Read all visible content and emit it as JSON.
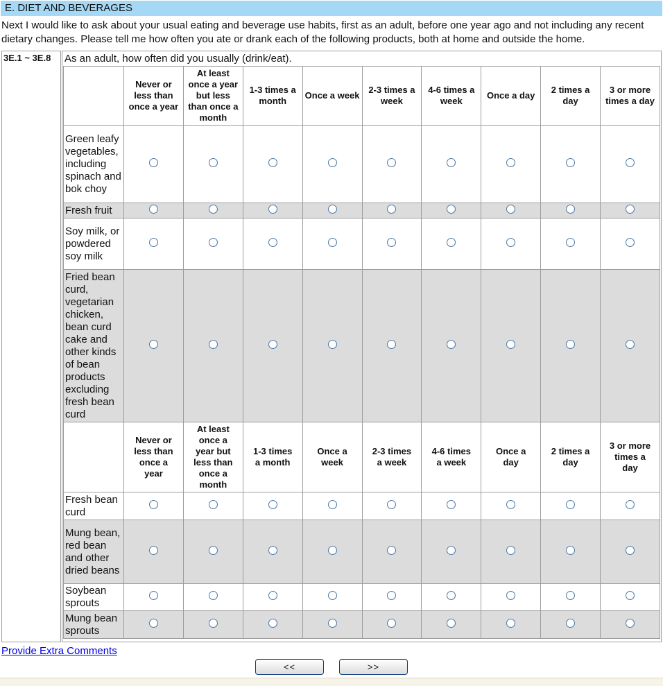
{
  "header": {
    "title": "E. DIET AND BEVERAGES"
  },
  "intro": "Next I would like to ask about your usual eating and beverage use habits, first as an adult, before one year ago and not including any recent dietary changes. Please tell me how often you ate or drank each of the following products, both at home and outside the home.",
  "question": {
    "range_label": "3E.1 ~ 3E.8",
    "prompt": "As an adult, how often did you usually (drink/eat)."
  },
  "matrix": {
    "frequency_options": [
      "Never or less than once a year",
      "At least once a year but less than once a month",
      "1-3 times a month",
      "Once a week",
      "2-3 times a week",
      "4-6 times a week",
      "Once a day",
      "2 times a day",
      "3 or more times a day"
    ],
    "row_groups": [
      {
        "rows": [
          {
            "label": "Green leafy vegetables, including spinach and bok choy",
            "shaded": false,
            "selected": null
          },
          {
            "label": "Fresh fruit",
            "shaded": true,
            "selected": null
          },
          {
            "label": "Soy milk, or powdered soy milk",
            "shaded": false,
            "selected": null
          },
          {
            "label": "Fried bean curd, vegetarian chicken, bean curd cake and other kinds of bean products excluding fresh bean curd",
            "shaded": true,
            "selected": null
          }
        ]
      },
      {
        "rows": [
          {
            "label": "Fresh bean curd",
            "shaded": false,
            "selected": null
          },
          {
            "label": "Mung bean, red bean and other dried beans",
            "shaded": true,
            "selected": null
          },
          {
            "label": "Soybean sprouts",
            "shaded": false,
            "selected": null
          },
          {
            "label": "Mung bean sprouts",
            "shaded": true,
            "selected": null
          }
        ]
      }
    ]
  },
  "footer": {
    "comments_link": "Provide Extra Comments",
    "prev_label": "<<",
    "next_label": ">>"
  },
  "colors": {
    "header_bar": "#a5d8f5",
    "shaded_row": "#dcdcdc",
    "table_border": "#9c9c9c",
    "link": "#0000e0",
    "button_border": "#0d3c7c",
    "footer_strip": "#f6f3e8",
    "radio_ring": "#4e79a8"
  }
}
